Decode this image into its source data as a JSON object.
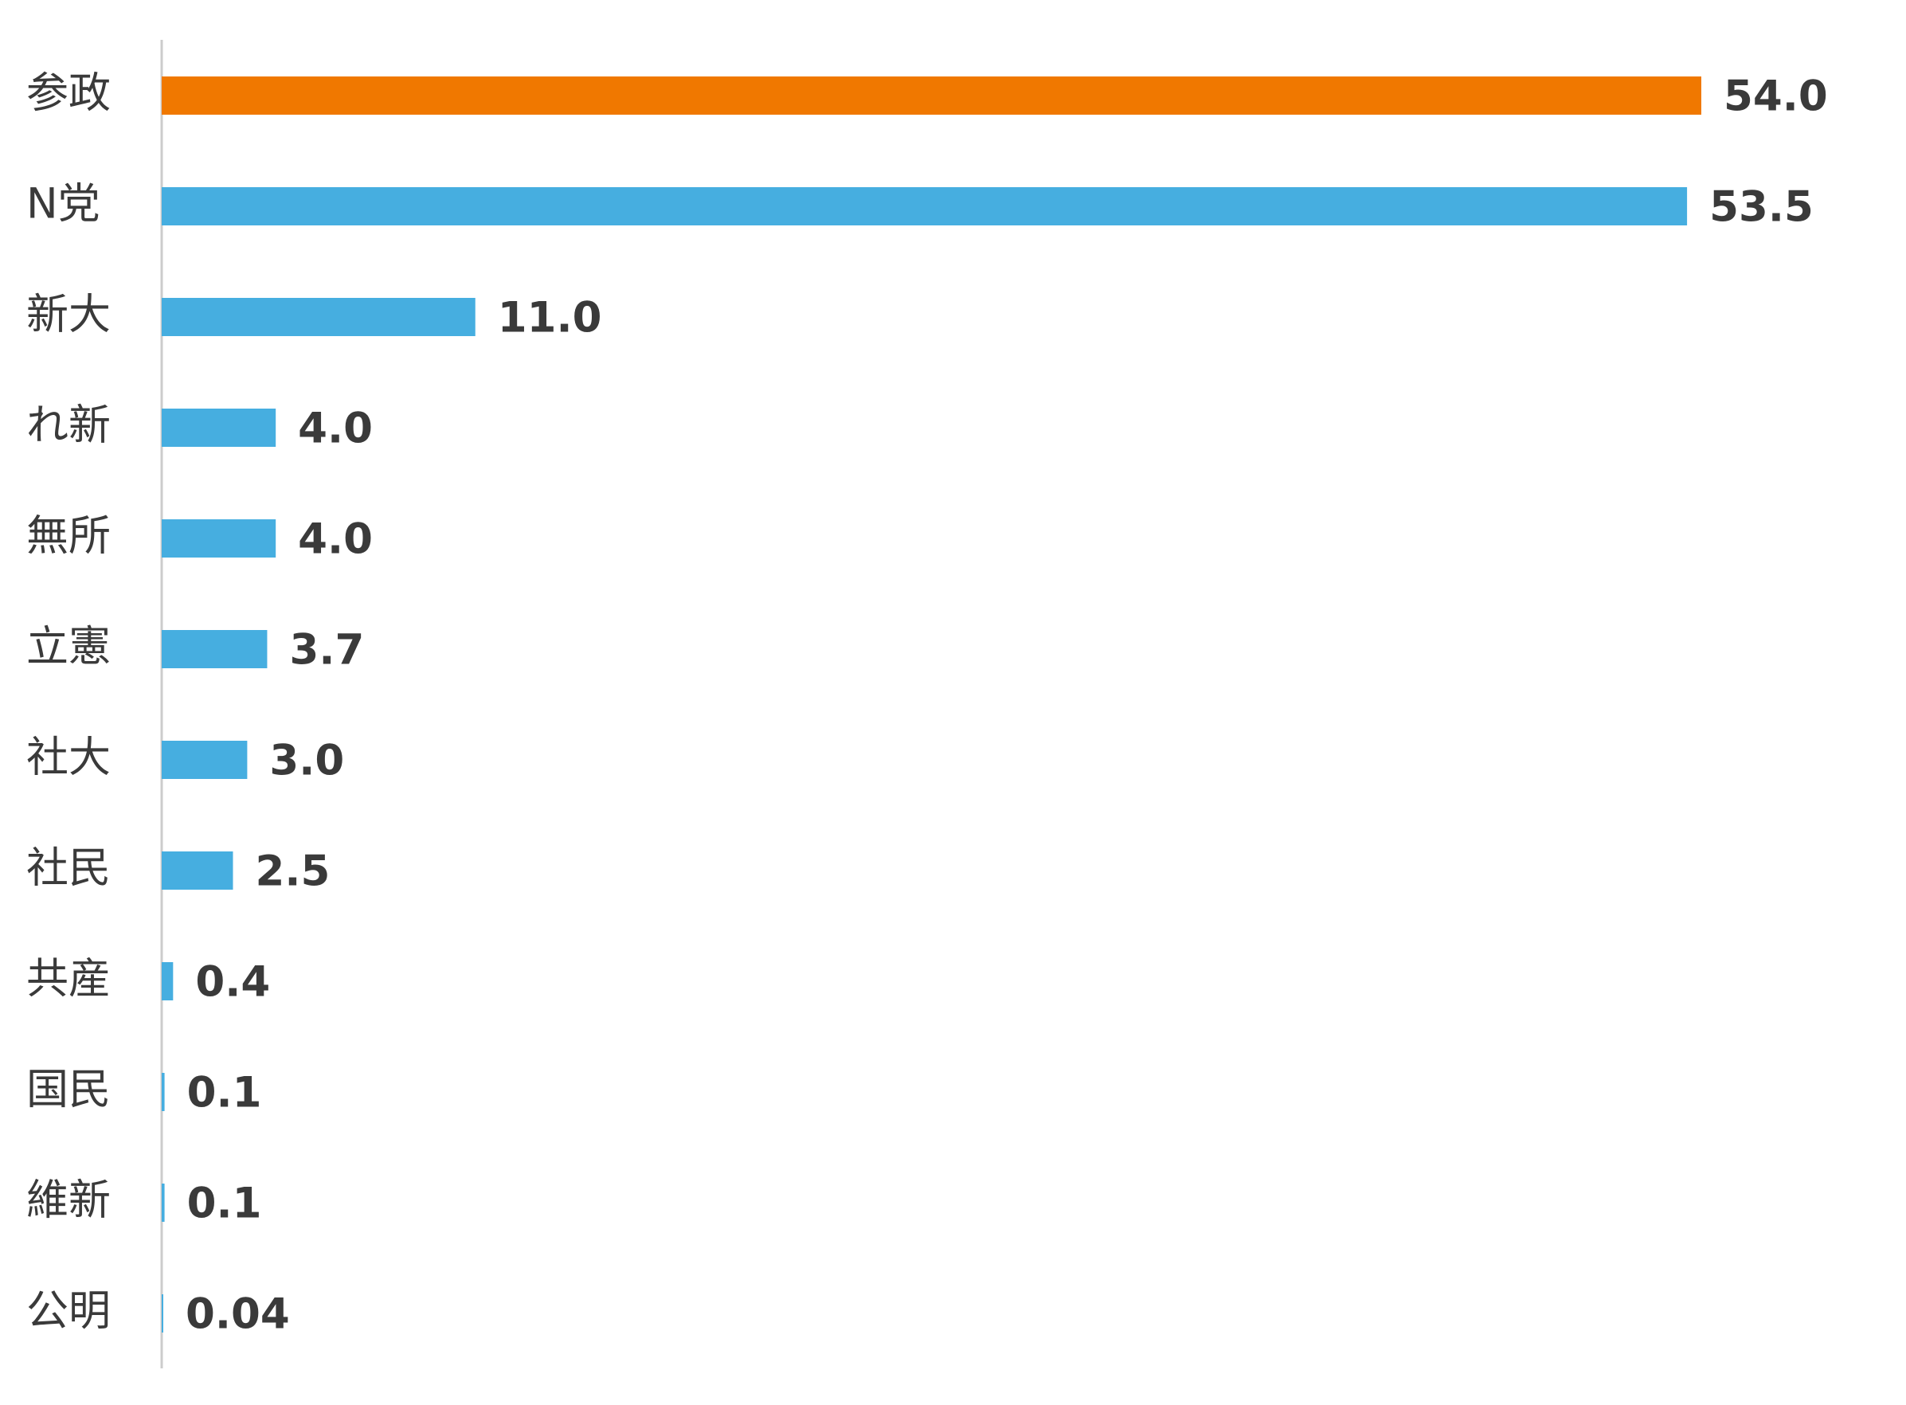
{
  "chart_data": {
    "type": "bar",
    "orientation": "horizontal",
    "categories": [
      "参政",
      "N党",
      "新大",
      "れ新",
      "無所",
      "立憲",
      "社大",
      "社民",
      "共産",
      "国民",
      "維新",
      "公明"
    ],
    "values": [
      54.0,
      53.5,
      11.0,
      4.0,
      4.0,
      3.7,
      3.0,
      2.5,
      0.4,
      0.1,
      0.1,
      0.04
    ],
    "value_labels": [
      "54.0",
      "53.5",
      "11.0",
      "4.0",
      "4.0",
      "3.7",
      "3.0",
      "2.5",
      "0.4",
      "0.1",
      "0.1",
      "0.04"
    ],
    "highlight_index": 0,
    "colors": {
      "highlight": "#F07800",
      "default": "#46AEE0",
      "axis": "#cccccc",
      "text": "#3a3a3a"
    },
    "title": "",
    "xlabel": "",
    "ylabel": "",
    "xlim": [
      0,
      54.0
    ],
    "grid": false,
    "legend": "none"
  }
}
